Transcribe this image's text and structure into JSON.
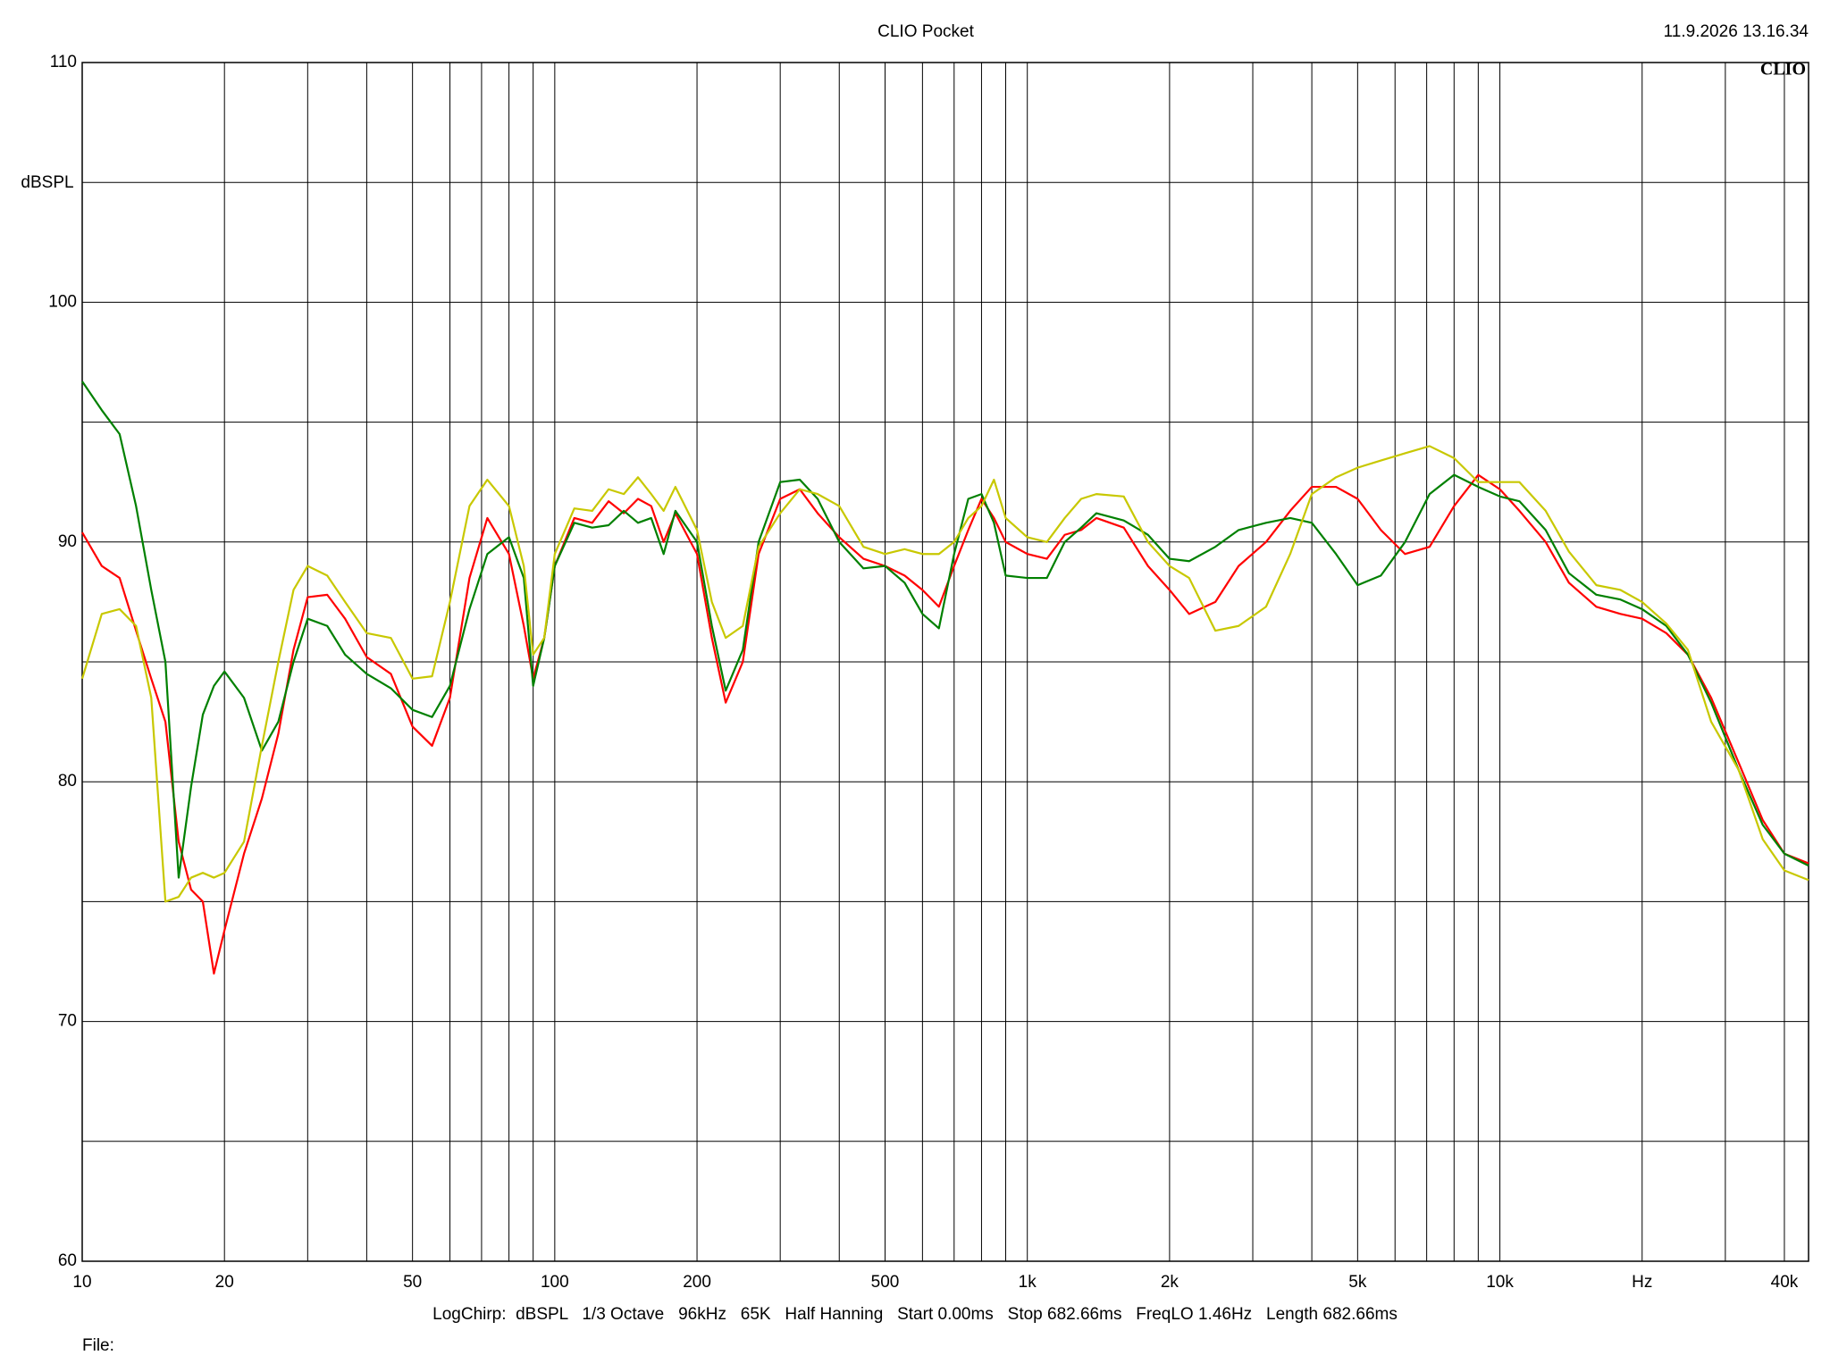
{
  "chart_data": {
    "type": "line",
    "title": "CLIO Pocket",
    "timestamp": "11.9.2026 13.16.34",
    "logo": "CLIO",
    "y_label": "dBSPL",
    "footer": "LogChirp:  dBSPL   1/3 Octave   96kHz   65K   Half Hanning   Start 0.00ms   Stop 682.66ms   FreqLO 1.46Hz   Length 682.66ms",
    "file_label": "File:",
    "x_scale": "log",
    "grid": true,
    "xlim": [
      10,
      45000
    ],
    "ylim": [
      60,
      110
    ],
    "yticks": [
      60,
      70,
      80,
      90,
      100,
      110
    ],
    "minor_yticks": [
      65,
      75,
      85,
      95,
      105
    ],
    "xticks": [
      10,
      20,
      50,
      100,
      200,
      500,
      {
        "value": 1000,
        "label": "1k"
      },
      {
        "value": 2000,
        "label": "2k"
      },
      {
        "value": 5000,
        "label": "5k"
      },
      {
        "value": 10000,
        "label": "10k"
      },
      {
        "value": 20000,
        "label": "Hz"
      },
      {
        "value": 40000,
        "label": "40k"
      }
    ],
    "minor_xticks": [
      30,
      40,
      60,
      70,
      80,
      90,
      300,
      400,
      600,
      700,
      800,
      900,
      3000,
      4000,
      6000,
      7000,
      8000,
      9000,
      30000
    ],
    "x": [
      10,
      11,
      12,
      13,
      14,
      15,
      16,
      17,
      18,
      19,
      20,
      22,
      24,
      26,
      28,
      30,
      33,
      36,
      40,
      45,
      50,
      55,
      60,
      66,
      72,
      80,
      86,
      90,
      95,
      100,
      110,
      120,
      130,
      140,
      150,
      160,
      170,
      180,
      200,
      215,
      230,
      250,
      270,
      300,
      330,
      360,
      400,
      450,
      500,
      550,
      600,
      650,
      700,
      750,
      800,
      850,
      900,
      1000,
      1100,
      1200,
      1300,
      1400,
      1600,
      1800,
      2000,
      2200,
      2500,
      2800,
      3200,
      3600,
      4000,
      4500,
      5000,
      5600,
      6300,
      7100,
      8000,
      9000,
      10000,
      11000,
      12500,
      14000,
      16000,
      18000,
      20000,
      22500,
      25000,
      28000,
      32000,
      36000,
      40000,
      45000
    ],
    "series": [
      {
        "color": "#ff0000",
        "values": [
          90.4,
          89.0,
          88.5,
          86.3,
          84.3,
          82.5,
          77.5,
          75.5,
          75.0,
          72.0,
          73.8,
          77.0,
          79.3,
          82.0,
          85.5,
          87.7,
          87.8,
          86.8,
          85.2,
          84.5,
          82.3,
          81.5,
          83.5,
          88.5,
          91.0,
          89.5,
          86.5,
          84.3,
          86.0,
          89.0,
          91.0,
          90.8,
          91.7,
          91.2,
          91.8,
          91.5,
          90.0,
          91.2,
          89.5,
          86.0,
          83.3,
          85.0,
          89.5,
          91.8,
          92.2,
          91.2,
          90.2,
          89.3,
          89.0,
          88.6,
          88.0,
          87.3,
          89.0,
          90.5,
          91.8,
          91.0,
          90.0,
          89.5,
          89.3,
          90.3,
          90.5,
          91.0,
          90.6,
          89.0,
          88.0,
          87.0,
          87.5,
          89.0,
          90.0,
          91.3,
          92.3,
          92.3,
          91.8,
          90.5,
          89.5,
          89.8,
          91.5,
          92.8,
          92.2,
          91.3,
          90.0,
          88.3,
          87.3,
          87.0,
          86.8,
          86.2,
          85.3,
          83.5,
          80.8,
          78.4,
          77.0,
          76.6
        ]
      },
      {
        "color": "#008000",
        "values": [
          96.7,
          95.5,
          94.5,
          91.5,
          88.0,
          85.0,
          76.0,
          79.8,
          82.8,
          84.0,
          84.6,
          83.5,
          81.3,
          82.5,
          85.0,
          86.8,
          86.5,
          85.3,
          84.5,
          83.9,
          83.0,
          82.7,
          84.0,
          87.2,
          89.5,
          90.2,
          88.5,
          84.0,
          86.0,
          89.0,
          90.8,
          90.6,
          90.7,
          91.3,
          90.8,
          91.0,
          89.5,
          91.3,
          90.0,
          86.5,
          83.8,
          85.5,
          90.0,
          92.5,
          92.6,
          91.8,
          90.0,
          88.9,
          89.0,
          88.3,
          87.0,
          86.4,
          89.5,
          91.8,
          92.0,
          90.8,
          88.6,
          88.5,
          88.5,
          90.0,
          90.6,
          91.2,
          90.9,
          90.3,
          89.3,
          89.2,
          89.8,
          90.5,
          90.8,
          91.0,
          90.8,
          89.5,
          88.2,
          88.6,
          90.0,
          92.0,
          92.8,
          92.3,
          91.9,
          91.7,
          90.5,
          88.7,
          87.8,
          87.6,
          87.2,
          86.5,
          85.3,
          83.3,
          80.5,
          78.2,
          77.0,
          76.5
        ]
      },
      {
        "color": "#c8c800",
        "values": [
          84.3,
          87.0,
          87.2,
          86.5,
          83.5,
          75.0,
          75.2,
          76.0,
          76.2,
          76.0,
          76.2,
          77.5,
          81.5,
          85.0,
          88.0,
          89.0,
          88.6,
          87.5,
          86.2,
          86.0,
          84.3,
          84.4,
          87.5,
          91.5,
          92.6,
          91.5,
          89.0,
          85.3,
          86.0,
          89.5,
          91.4,
          91.3,
          92.2,
          92.0,
          92.7,
          92.0,
          91.3,
          92.3,
          90.5,
          87.5,
          86.0,
          86.5,
          89.8,
          91.2,
          92.2,
          92.0,
          91.5,
          89.8,
          89.5,
          89.7,
          89.5,
          89.5,
          90.0,
          91.0,
          91.5,
          92.6,
          91.0,
          90.2,
          90.0,
          91.0,
          91.8,
          92.0,
          91.9,
          90.0,
          89.0,
          88.5,
          86.3,
          86.5,
          87.3,
          89.5,
          92.0,
          92.7,
          93.1,
          93.4,
          93.7,
          94.0,
          93.5,
          92.5,
          92.5,
          92.5,
          91.3,
          89.6,
          88.2,
          88.0,
          87.5,
          86.6,
          85.5,
          82.5,
          80.5,
          77.6,
          76.3,
          75.9
        ]
      }
    ]
  }
}
